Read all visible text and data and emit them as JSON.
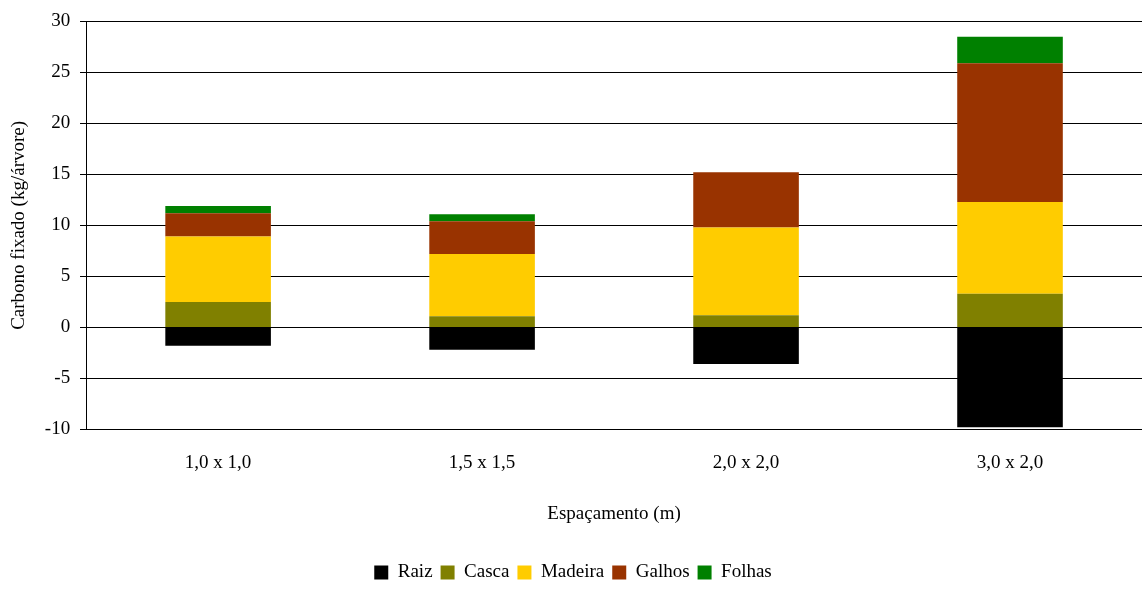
{
  "chart_data": {
    "type": "bar",
    "stacked": true,
    "xlabel": "Espaçamento (m)",
    "ylabel": "Carbono fixado (kg/árvore)",
    "categories": [
      "1,0 x 1,0",
      "1,5 x 1,5",
      "2,0 x 2,0",
      "3,0 x 2,0"
    ],
    "series": [
      {
        "name": "Raiz",
        "color": "#000000",
        "values": [
          -1.8,
          -2.2,
          -3.6,
          -9.8
        ]
      },
      {
        "name": "Casca",
        "color": "#808000",
        "values": [
          2.5,
          1.1,
          1.2,
          3.3
        ]
      },
      {
        "name": "Madeira",
        "color": "#ffcc00",
        "values": [
          6.4,
          6.1,
          8.6,
          9.0
        ]
      },
      {
        "name": "Galhos",
        "color": "#993300",
        "values": [
          2.3,
          3.2,
          5.4,
          13.6
        ]
      },
      {
        "name": "Folhas",
        "color": "#008000",
        "values": [
          0.7,
          0.7,
          0,
          2.6
        ]
      }
    ],
    "ylim": [
      -10,
      30
    ],
    "yticks": [
      -10,
      -5,
      0,
      5,
      10,
      15,
      20,
      25,
      30
    ],
    "grid": "y",
    "legend": "bottom"
  }
}
